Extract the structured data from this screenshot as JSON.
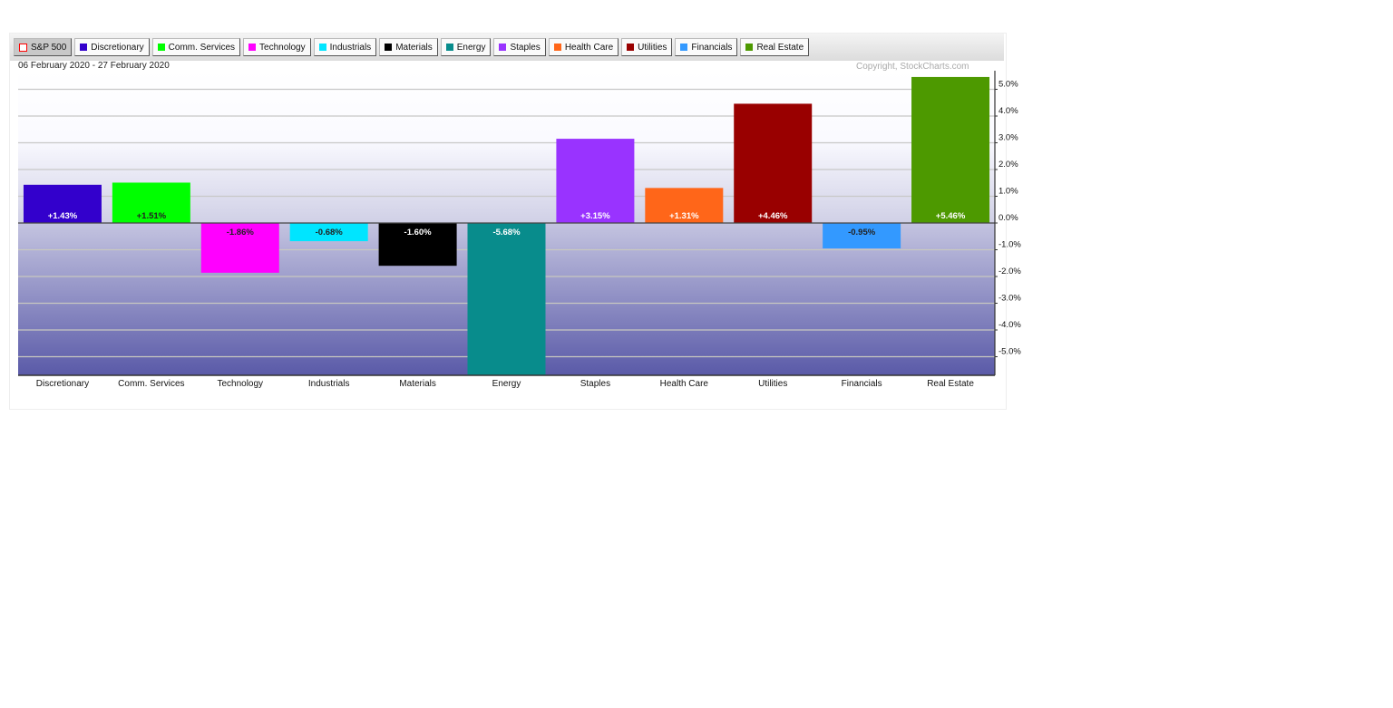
{
  "legend": [
    {
      "label": "S&P 500",
      "color": "#ff0000",
      "active": true
    },
    {
      "label": "Discretionary",
      "color": "#3300cc"
    },
    {
      "label": "Comm. Services",
      "color": "#00ff00"
    },
    {
      "label": "Technology",
      "color": "#ff00ff"
    },
    {
      "label": "Industrials",
      "color": "#00e5ff"
    },
    {
      "label": "Materials",
      "color": "#000000"
    },
    {
      "label": "Energy",
      "color": "#088c8c"
    },
    {
      "label": "Staples",
      "color": "#9933ff"
    },
    {
      "label": "Health Care",
      "color": "#ff6619"
    },
    {
      "label": "Utilities",
      "color": "#990000"
    },
    {
      "label": "Financials",
      "color": "#3399ff"
    },
    {
      "label": "Real Estate",
      "color": "#4d9900"
    }
  ],
  "date_range": "06 February 2020 - 27 February 2020",
  "copyright": "Copyright, StockCharts.com",
  "chart_data": {
    "type": "bar",
    "categories": [
      "Discretionary",
      "Comm. Services",
      "Technology",
      "Industrials",
      "Materials",
      "Energy",
      "Staples",
      "Health Care",
      "Utilities",
      "Financials",
      "Real Estate"
    ],
    "values": [
      1.43,
      1.51,
      -1.86,
      -0.68,
      -1.6,
      -5.68,
      3.15,
      1.31,
      4.46,
      -0.95,
      5.46
    ],
    "data_labels": [
      "+1.43%",
      "+1.51%",
      "-1.86%",
      "-0.68%",
      "-1.60%",
      "-5.68%",
      "+3.15%",
      "+1.31%",
      "+4.46%",
      "-0.95%",
      "+5.46%"
    ],
    "colors": [
      "#3300cc",
      "#00ff00",
      "#ff00ff",
      "#00e5ff",
      "#000000",
      "#088c8c",
      "#9933ff",
      "#ff6619",
      "#990000",
      "#3399ff",
      "#4d9900"
    ],
    "yticks": [
      "5.0%",
      "4.0%",
      "3.0%",
      "2.0%",
      "1.0%",
      "0.0%",
      "-1.0%",
      "-2.0%",
      "-3.0%",
      "-4.0%",
      "-5.0%"
    ],
    "ytick_values": [
      5,
      4,
      3,
      2,
      1,
      0,
      -1,
      -2,
      -3,
      -4,
      -5
    ],
    "ylim": [
      -5.68,
      5.73
    ],
    "grid": true,
    "yaxis": "right"
  }
}
